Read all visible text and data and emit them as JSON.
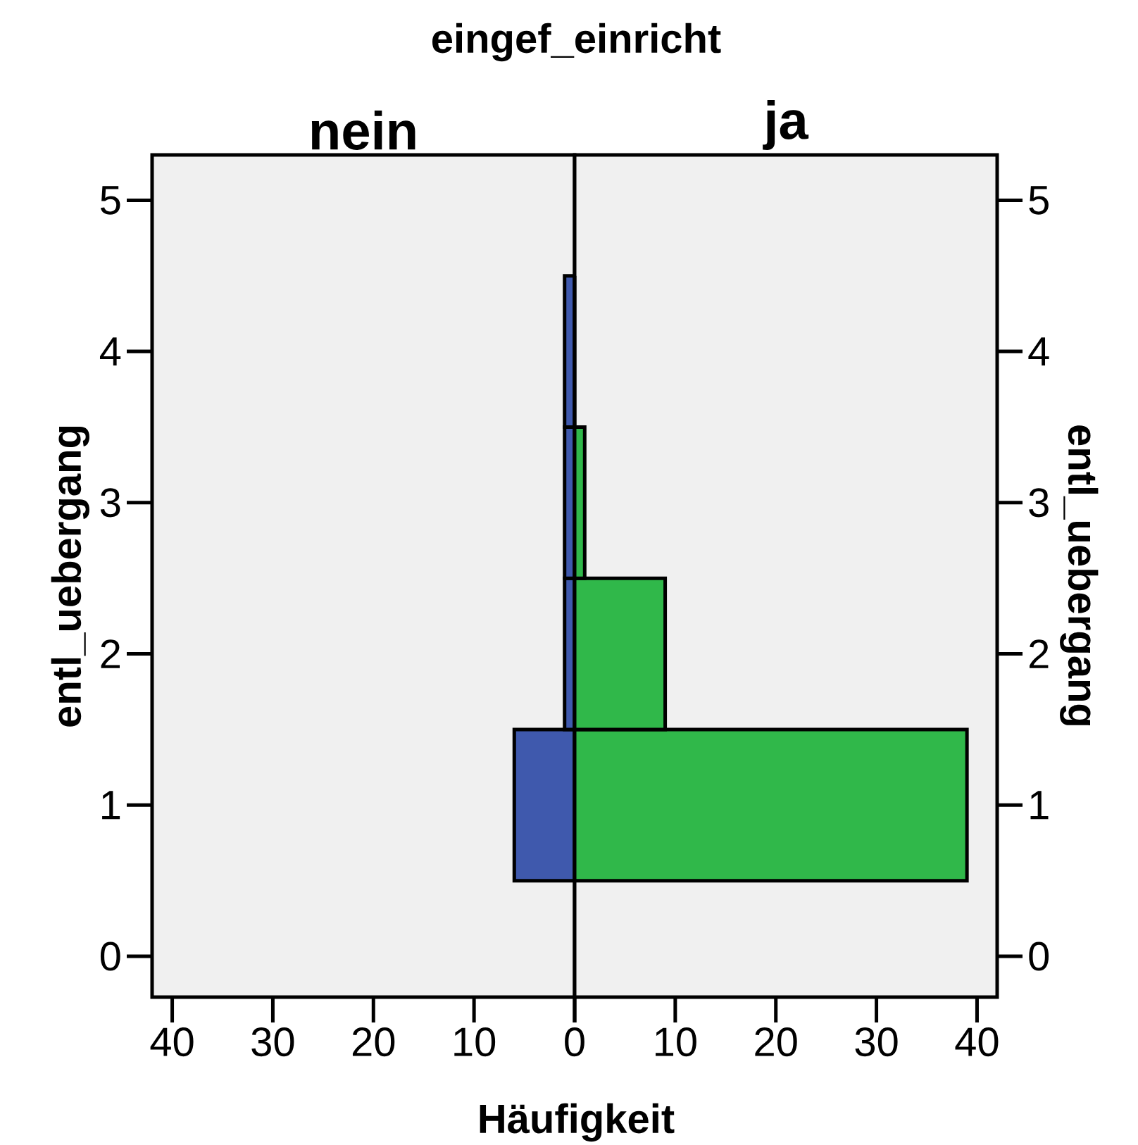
{
  "chart_data": [
    {
      "type": "histogram",
      "orientation": "horizontal",
      "title": "eingef_einricht",
      "subtitle": "nein",
      "xlabel": "Häufigkeit",
      "ylabel": "entl_uebergang",
      "bins": [
        0.5,
        1.5,
        2.5,
        3.5,
        4.5
      ],
      "values": [
        6,
        1,
        1,
        1
      ],
      "color": "#3f59ad",
      "xlim": [
        42,
        0
      ],
      "xticks": [
        40,
        30,
        20,
        10,
        0
      ],
      "ylim": [
        -0.27,
        5.3
      ],
      "yticks": [
        0,
        1,
        2,
        3,
        4,
        5
      ]
    },
    {
      "type": "histogram",
      "orientation": "horizontal",
      "subtitle": "ja",
      "ylabel": "entl_uebergang",
      "bins": [
        0.5,
        1.5,
        2.5,
        3.5,
        4.5
      ],
      "values": [
        39,
        9,
        1,
        0
      ],
      "color": "#30b84a",
      "xlim": [
        0,
        42
      ],
      "xticks": [
        {
          "value": 0,
          "label": null
        },
        10,
        20,
        30,
        40
      ],
      "ylim": [
        -0.27,
        5.3
      ],
      "yticks": [
        0,
        1,
        2,
        3,
        4,
        5
      ]
    }
  ]
}
